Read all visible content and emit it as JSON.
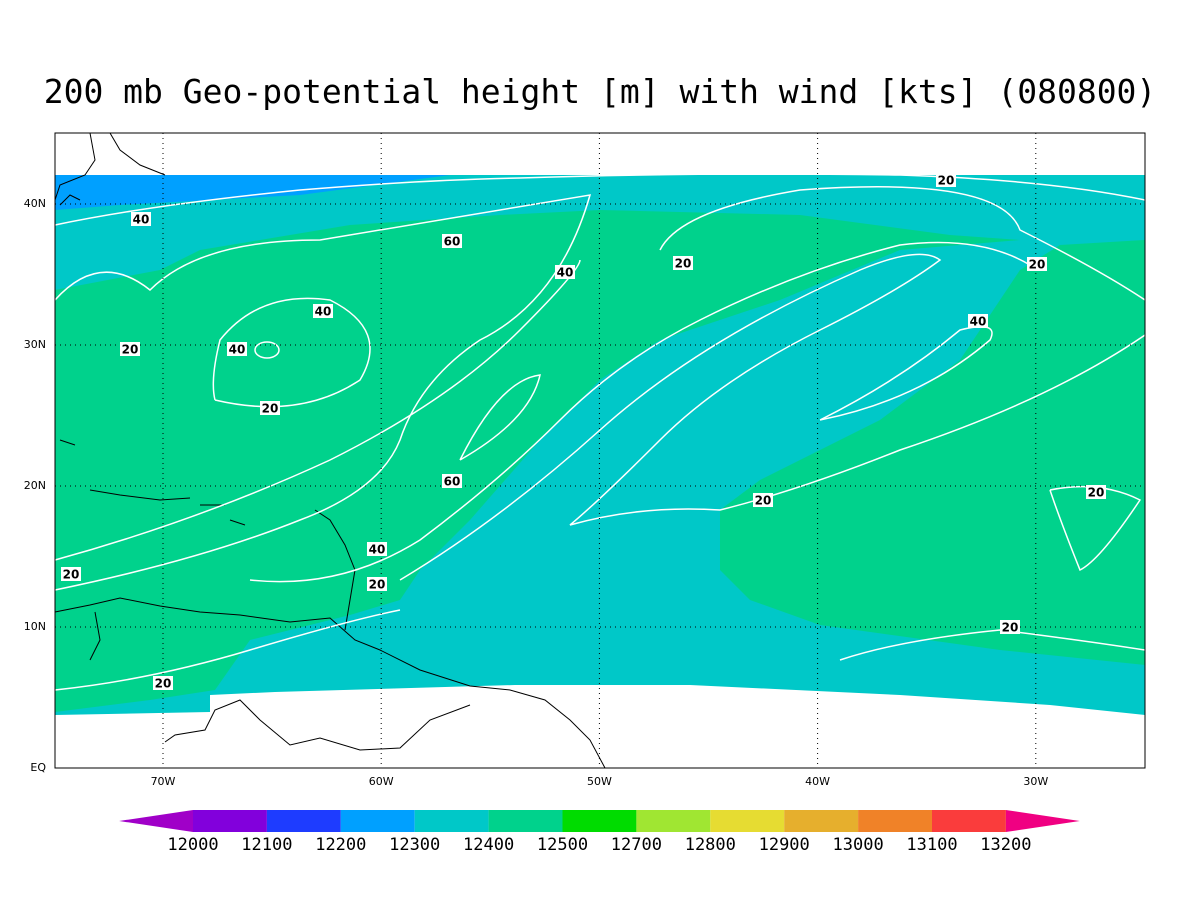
{
  "title": "200 mb Geo-potential height [m] with wind [kts] (080800)",
  "map": {
    "lon_labels": [
      "70W",
      "60W",
      "50W",
      "40W",
      "30W"
    ],
    "lat_labels": [
      "EQ",
      "10N",
      "20N",
      "30N",
      "40N"
    ],
    "fill_colors": {
      "light_blue": "#00a0ff",
      "cyan": "#00c8c8",
      "green": "#00d28c"
    }
  },
  "contour_labels": [
    20,
    40,
    60,
    20,
    40,
    20,
    40,
    40,
    20,
    40,
    20,
    60,
    20,
    20,
    40,
    20,
    20,
    20,
    20
  ],
  "colorbar": {
    "levels": [
      12000,
      12100,
      12200,
      12300,
      12400,
      12500,
      12700,
      12800,
      12900,
      13000,
      13100,
      13200
    ],
    "colors": [
      "#a000c8",
      "#8200dc",
      "#1e3cff",
      "#00a0ff",
      "#00c8c8",
      "#00d28c",
      "#00dc00",
      "#a0e632",
      "#e6dc32",
      "#e6af2d",
      "#f08228",
      "#fa3c3c",
      "#f00082"
    ]
  }
}
